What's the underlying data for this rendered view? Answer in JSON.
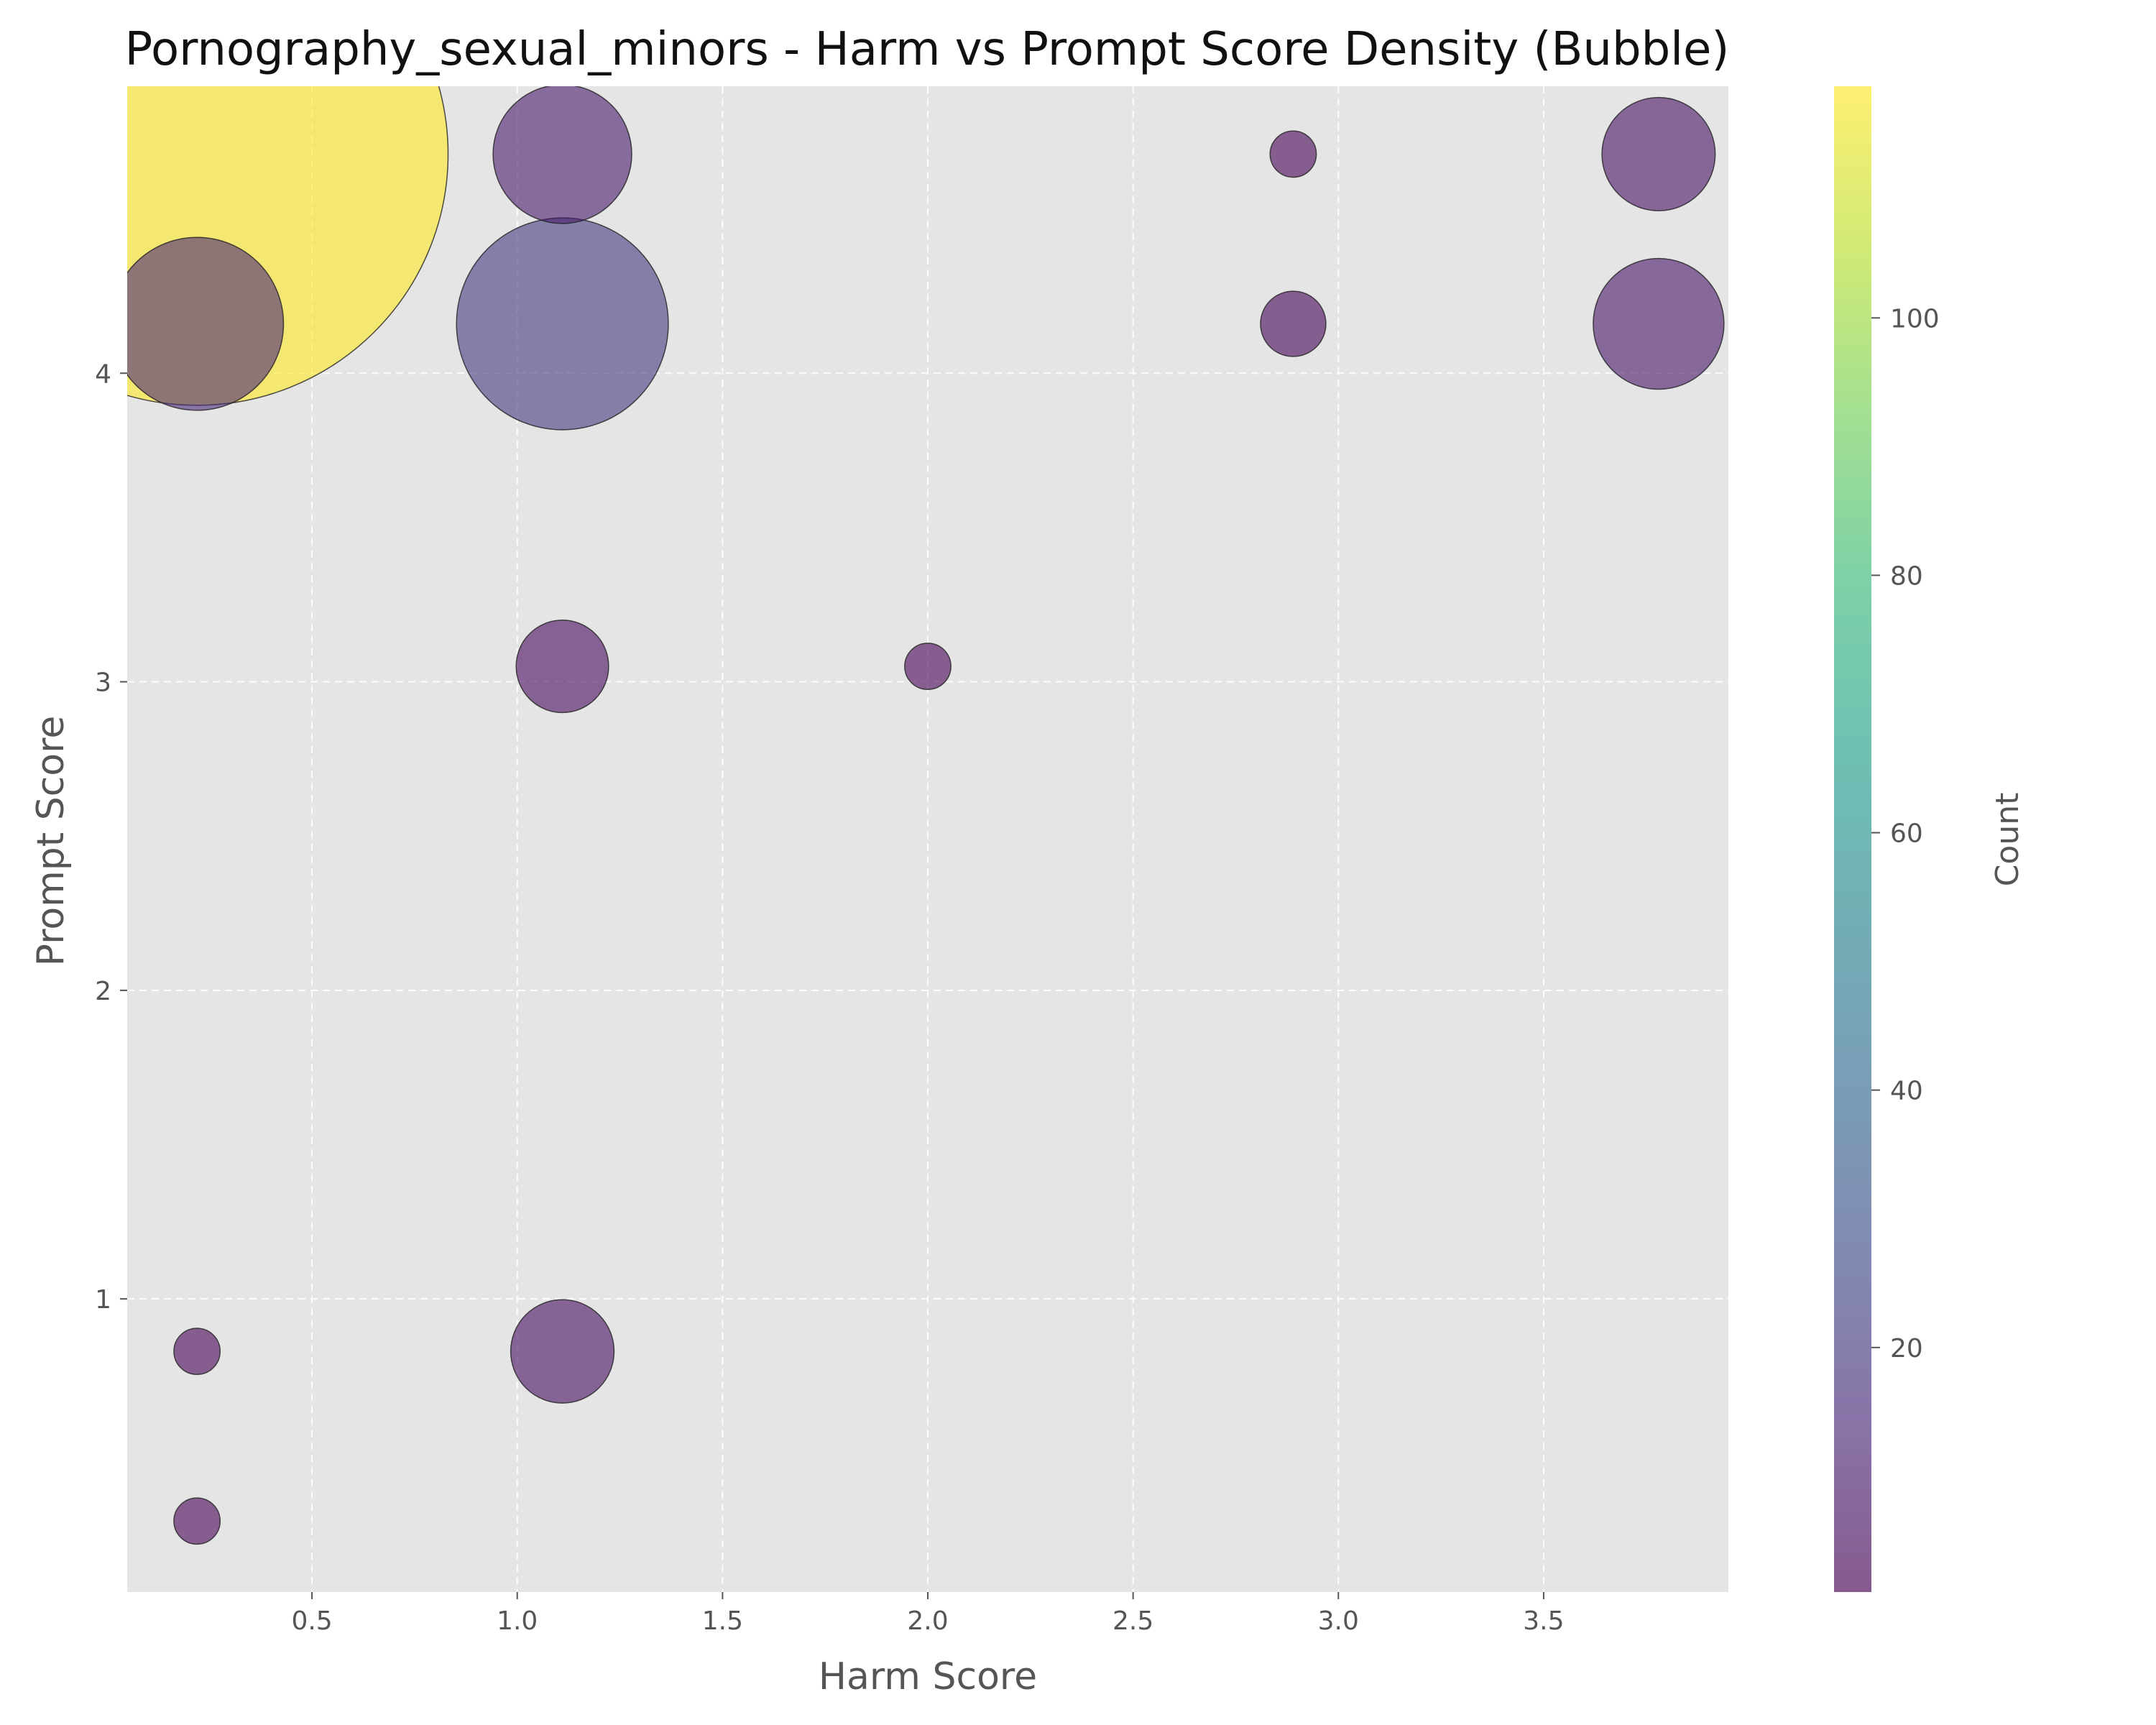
{
  "chart_data": {
    "type": "scatter",
    "variant": "bubble",
    "title": "Pornography_sexual_minors - Harm vs Prompt Score Density (Bubble)",
    "xlabel": "Harm Score",
    "ylabel": "Prompt Score",
    "xlim": [
      0.05,
      3.95
    ],
    "ylim": [
      0.05,
      4.93
    ],
    "x_ticks": [
      0.5,
      1.0,
      1.5,
      2.0,
      2.5,
      3.0,
      3.5
    ],
    "x_tick_labels": [
      "0.5",
      "1.0",
      "1.5",
      "2.0",
      "2.5",
      "3.0",
      "3.5"
    ],
    "y_ticks": [
      1,
      2,
      3,
      4
    ],
    "y_tick_labels": [
      "1",
      "2",
      "3",
      "4"
    ],
    "grid": true,
    "colorbar": {
      "label": "Count",
      "range": [
        1,
        118
      ],
      "ticks": [
        20,
        40,
        60,
        80,
        100
      ],
      "tick_labels": [
        "20",
        "40",
        "60",
        "80",
        "100"
      ],
      "colormap": "viridis"
    },
    "points": [
      {
        "x": 0.22,
        "y": 4.71,
        "count": 118
      },
      {
        "x": 1.11,
        "y": 4.71,
        "count": 9
      },
      {
        "x": 2.89,
        "y": 4.71,
        "count": 1
      },
      {
        "x": 3.78,
        "y": 4.71,
        "count": 6
      },
      {
        "x": 0.22,
        "y": 4.16,
        "count": 14
      },
      {
        "x": 1.11,
        "y": 4.16,
        "count": 21
      },
      {
        "x": 2.89,
        "y": 4.16,
        "count": 2
      },
      {
        "x": 3.78,
        "y": 4.16,
        "count": 8
      },
      {
        "x": 1.11,
        "y": 3.05,
        "count": 4
      },
      {
        "x": 2.0,
        "y": 3.05,
        "count": 1
      },
      {
        "x": 0.22,
        "y": 0.83,
        "count": 1
      },
      {
        "x": 1.11,
        "y": 0.83,
        "count": 5
      },
      {
        "x": 0.22,
        "y": 0.28,
        "count": 1
      }
    ]
  },
  "colors": {
    "background": "#ffffff",
    "plot_background": "#e5e5e5",
    "grid": "#ffffff",
    "bubble_edge": "#222222",
    "text": "#555555",
    "title_text": "#111111"
  }
}
